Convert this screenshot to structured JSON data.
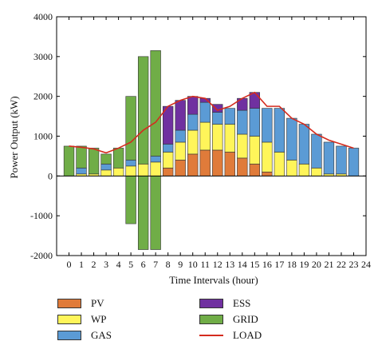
{
  "chart_data": {
    "type": "bar",
    "stacked": true,
    "xlabel": "Time Intervals (hour)",
    "ylabel": "Power Output (kW)",
    "xticks": [
      "0",
      "1",
      "2",
      "3",
      "4",
      "5",
      "6",
      "7",
      "8",
      "9",
      "10",
      "11",
      "12",
      "13",
      "14",
      "15",
      "16",
      "17",
      "18",
      "19",
      "20",
      "21",
      "22",
      "23",
      "24"
    ],
    "yticks": [
      "4000",
      "3000",
      "2000",
      "1000",
      "0",
      "-1000",
      "-2000"
    ],
    "ylim": [
      -2000,
      4000
    ],
    "xlim": [
      -1,
      24
    ],
    "categories": [
      0,
      1,
      2,
      3,
      4,
      5,
      6,
      7,
      8,
      9,
      10,
      11,
      12,
      13,
      14,
      15,
      16,
      17,
      18,
      19,
      20,
      21,
      22,
      23
    ],
    "series": [
      {
        "name": "PV",
        "color": "#e07b3a",
        "values": [
          0,
          0,
          0,
          0,
          0,
          0,
          0,
          0,
          200,
          400,
          550,
          650,
          650,
          600,
          450,
          300,
          100,
          0,
          0,
          0,
          0,
          0,
          0,
          0
        ]
      },
      {
        "name": "WP",
        "color": "#fff55a",
        "values": [
          0,
          50,
          50,
          150,
          200,
          250,
          300,
          350,
          400,
          450,
          600,
          700,
          650,
          700,
          600,
          700,
          750,
          600,
          400,
          300,
          200,
          50,
          50,
          0
        ]
      },
      {
        "name": "GAS",
        "color": "#5b9bd5",
        "values": [
          0,
          150,
          0,
          150,
          0,
          150,
          0,
          150,
          200,
          300,
          400,
          500,
          300,
          400,
          600,
          700,
          850,
          1100,
          1050,
          1000,
          850,
          800,
          700,
          700
        ]
      },
      {
        "name": "ESS",
        "color": "#7030a0",
        "values": [
          0,
          0,
          0,
          0,
          0,
          0,
          0,
          0,
          950,
          750,
          450,
          100,
          200,
          0,
          300,
          400,
          0,
          0,
          0,
          0,
          0,
          0,
          0,
          0
        ]
      },
      {
        "name": "GRID",
        "color": "#70ad47",
        "values": [
          750,
          550,
          650,
          250,
          500,
          1600,
          2700,
          2650,
          0,
          0,
          0,
          0,
          0,
          0,
          0,
          0,
          0,
          0,
          0,
          0,
          0,
          0,
          0,
          0
        ]
      }
    ],
    "negative_series": [
      {
        "name": "GRID",
        "color": "#70ad47",
        "values": [
          0,
          0,
          0,
          0,
          0,
          -1200,
          -1850,
          -1850,
          0,
          0,
          0,
          0,
          0,
          0,
          0,
          0,
          0,
          0,
          0,
          0,
          0,
          0,
          0,
          0
        ]
      }
    ],
    "line_series": {
      "name": "LOAD",
      "color": "#d42b1e",
      "x": [
        0,
        1,
        2,
        3,
        4,
        5,
        6,
        7,
        8,
        9,
        10,
        11,
        12,
        13,
        14,
        15,
        16,
        17,
        18,
        19,
        20,
        21,
        22,
        23
      ],
      "values": [
        750,
        720,
        680,
        580,
        700,
        850,
        1150,
        1350,
        1750,
        1900,
        2000,
        1950,
        1650,
        1750,
        1950,
        2100,
        1750,
        1750,
        1450,
        1300,
        1050,
        900,
        800,
        700
      ]
    },
    "legend": [
      {
        "name": "PV",
        "kind": "bar",
        "color": "#e07b3a"
      },
      {
        "name": "ESS",
        "kind": "bar",
        "color": "#7030a0"
      },
      {
        "name": "WP",
        "kind": "bar",
        "color": "#fff55a"
      },
      {
        "name": "GRID",
        "kind": "bar",
        "color": "#70ad47"
      },
      {
        "name": "GAS",
        "kind": "bar",
        "color": "#5b9bd5"
      },
      {
        "name": "LOAD",
        "kind": "line",
        "color": "#d42b1e"
      }
    ],
    "legend_position": "bottom"
  }
}
